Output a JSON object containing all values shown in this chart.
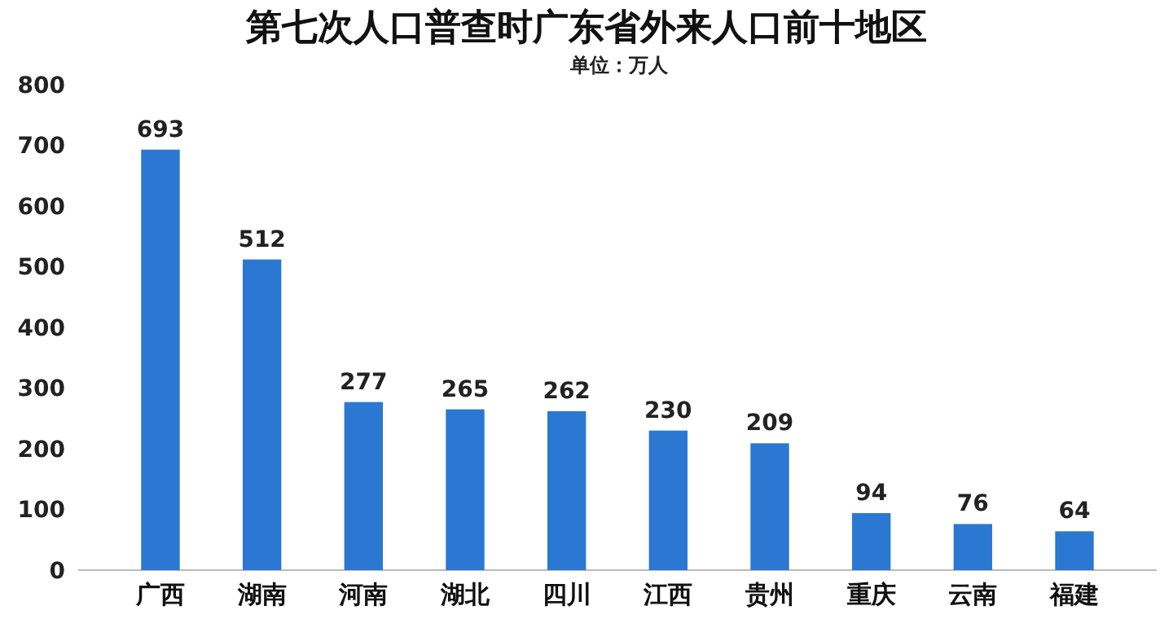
{
  "chart_data": {
    "type": "bar",
    "title": "第七次人口普查时广东省外来人口前十地区",
    "subtitle": "单位：万人",
    "categories": [
      "广西",
      "湖南",
      "河南",
      "湖北",
      "四川",
      "江西",
      "贵州",
      "重庆",
      "云南",
      "福建"
    ],
    "values": [
      693,
      512,
      277,
      265,
      262,
      230,
      209,
      94,
      76,
      64
    ],
    "color": "#2a78d2",
    "ylim": [
      0,
      800
    ],
    "yticks": [
      0,
      100,
      200,
      300,
      400,
      500,
      600,
      700,
      800
    ],
    "grid": false,
    "data_labels": true
  }
}
